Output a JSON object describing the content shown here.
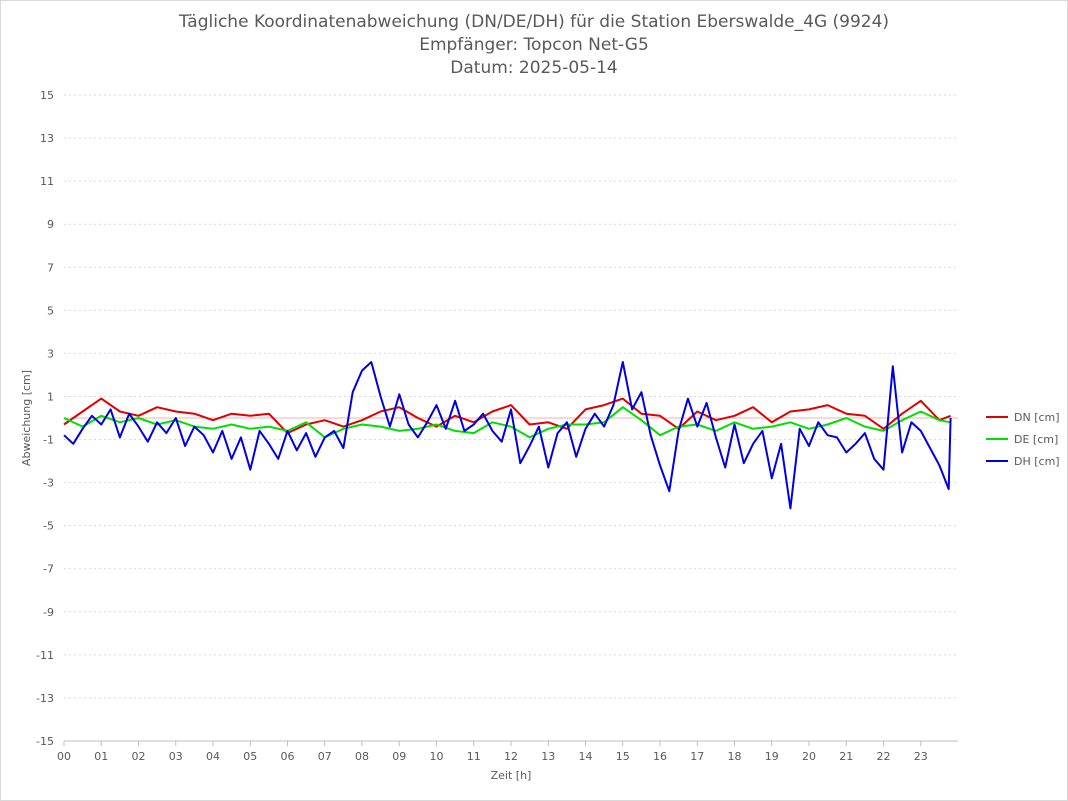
{
  "chart_data": {
    "type": "line",
    "title": "Tägliche Koordinatenabweichung (DN/DE/DH) für die Station Eberswalde_4G (9924)",
    "subtitle": "Empfänger: Topcon Net-G5",
    "date_label": "Datum: 2025-05-14",
    "xlabel": "Zeit [h]",
    "ylabel": "Abweichung [cm]",
    "xlim": [
      0,
      24
    ],
    "ylim": [
      -15,
      15
    ],
    "x_ticks": [
      "00",
      "01",
      "02",
      "03",
      "04",
      "05",
      "06",
      "07",
      "08",
      "09",
      "10",
      "11",
      "12",
      "13",
      "14",
      "15",
      "16",
      "17",
      "18",
      "19",
      "20",
      "21",
      "22",
      "23"
    ],
    "y_ticks": [
      15,
      13,
      11,
      9,
      7,
      5,
      3,
      1,
      -1,
      -3,
      -5,
      -7,
      -9,
      -11,
      -13,
      -15
    ],
    "grid": "horizontal-dotted",
    "legend_position": "right",
    "series": [
      {
        "name": "DN [cm]",
        "color": "#e00000",
        "x": [
          0,
          0.5,
          1,
          1.5,
          2,
          2.5,
          3,
          3.5,
          4,
          4.5,
          5,
          5.5,
          6,
          6.5,
          7,
          7.5,
          8,
          8.5,
          9,
          9.5,
          10,
          10.5,
          11,
          11.5,
          12,
          12.5,
          13,
          13.5,
          14,
          14.5,
          15,
          15.5,
          16,
          16.5,
          17,
          17.5,
          18,
          18.5,
          19,
          19.5,
          20,
          20.5,
          21,
          21.5,
          22,
          22.5,
          23,
          23.5,
          23.8
        ],
        "values": [
          -0.3,
          0.3,
          0.9,
          0.3,
          0.1,
          0.5,
          0.3,
          0.2,
          -0.1,
          0.2,
          0.1,
          0.2,
          -0.7,
          -0.3,
          -0.1,
          -0.4,
          -0.1,
          0.3,
          0.5,
          0,
          -0.4,
          0.1,
          -0.2,
          0.3,
          0.6,
          -0.3,
          -0.2,
          -0.5,
          0.4,
          0.6,
          0.9,
          0.2,
          0.1,
          -0.5,
          0.3,
          -0.1,
          0.1,
          0.5,
          -0.2,
          0.3,
          0.4,
          0.6,
          0.2,
          0.1,
          -0.5,
          0.2,
          0.8,
          -0.1,
          0.1
        ]
      },
      {
        "name": "DE [cm]",
        "color": "#00e000",
        "x": [
          0,
          0.5,
          1,
          1.5,
          2,
          2.5,
          3,
          3.5,
          4,
          4.5,
          5,
          5.5,
          6,
          6.5,
          7,
          7.5,
          8,
          8.5,
          9,
          9.5,
          10,
          10.5,
          11,
          11.5,
          12,
          12.5,
          13,
          13.5,
          14,
          14.5,
          15,
          15.5,
          16,
          16.5,
          17,
          17.5,
          18,
          18.5,
          19,
          19.5,
          20,
          20.5,
          21,
          21.5,
          22,
          22.5,
          23,
          23.5,
          23.8
        ],
        "values": [
          0,
          -0.4,
          0.1,
          -0.2,
          0,
          -0.3,
          -0.1,
          -0.4,
          -0.5,
          -0.3,
          -0.5,
          -0.4,
          -0.6,
          -0.2,
          -0.9,
          -0.5,
          -0.3,
          -0.4,
          -0.6,
          -0.5,
          -0.3,
          -0.6,
          -0.7,
          -0.2,
          -0.4,
          -0.9,
          -0.5,
          -0.3,
          -0.3,
          -0.2,
          0.5,
          -0.1,
          -0.8,
          -0.4,
          -0.3,
          -0.6,
          -0.2,
          -0.5,
          -0.4,
          -0.2,
          -0.5,
          -0.3,
          0,
          -0.4,
          -0.6,
          -0.1,
          0.3,
          -0.1,
          -0.2
        ]
      },
      {
        "name": "DH [cm]",
        "color": "#0000e0",
        "x": [
          0,
          0.25,
          0.5,
          0.75,
          1,
          1.25,
          1.5,
          1.75,
          2,
          2.25,
          2.5,
          2.75,
          3,
          3.25,
          3.5,
          3.75,
          4,
          4.25,
          4.5,
          4.75,
          5,
          5.25,
          5.5,
          5.75,
          6,
          6.25,
          6.5,
          6.75,
          7,
          7.25,
          7.5,
          7.75,
          8,
          8.25,
          8.5,
          8.75,
          9,
          9.25,
          9.5,
          9.75,
          10,
          10.25,
          10.5,
          10.75,
          11,
          11.25,
          11.5,
          11.75,
          12,
          12.25,
          12.5,
          12.75,
          13,
          13.25,
          13.5,
          13.75,
          14,
          14.25,
          14.5,
          14.75,
          15,
          15.25,
          15.5,
          15.75,
          16,
          16.25,
          16.5,
          16.75,
          17,
          17.25,
          17.5,
          17.75,
          18,
          18.25,
          18.5,
          18.75,
          19,
          19.25,
          19.5,
          19.75,
          20,
          20.25,
          20.5,
          20.75,
          21,
          21.25,
          21.5,
          21.75,
          22,
          22.25,
          22.5,
          22.75,
          23,
          23.25,
          23.5,
          23.75,
          23.8
        ],
        "values": [
          -0.8,
          -1.2,
          -0.5,
          0.1,
          -0.3,
          0.4,
          -0.9,
          0.2,
          -0.4,
          -1.1,
          -0.2,
          -0.7,
          0,
          -1.3,
          -0.4,
          -0.8,
          -1.6,
          -0.6,
          -1.9,
          -0.9,
          -2.4,
          -0.6,
          -1.2,
          -1.9,
          -0.6,
          -1.5,
          -0.7,
          -1.8,
          -0.9,
          -0.6,
          -1.4,
          1.2,
          2.2,
          2.6,
          1.0,
          -0.4,
          1.1,
          -0.3,
          -0.9,
          -0.2,
          0.6,
          -0.5,
          0.8,
          -0.6,
          -0.3,
          0.2,
          -0.6,
          -1.1,
          0.4,
          -2.1,
          -1.3,
          -0.4,
          -2.3,
          -0.7,
          -0.2,
          -1.8,
          -0.5,
          0.2,
          -0.4,
          0.6,
          2.6,
          0.4,
          1.2,
          -0.8,
          -2.2,
          -3.4,
          -0.6,
          0.9,
          -0.4,
          0.7,
          -0.9,
          -2.3,
          -0.3,
          -2.1,
          -1.2,
          -0.6,
          -2.8,
          -1.2,
          -4.2,
          -0.5,
          -1.3,
          -0.2,
          -0.8,
          -0.9,
          -1.6,
          -1.2,
          -0.7,
          -1.9,
          -2.4,
          2.4,
          -1.6,
          -0.2,
          -0.6,
          -1.4,
          -2.2,
          -3.3,
          0
        ]
      }
    ]
  }
}
